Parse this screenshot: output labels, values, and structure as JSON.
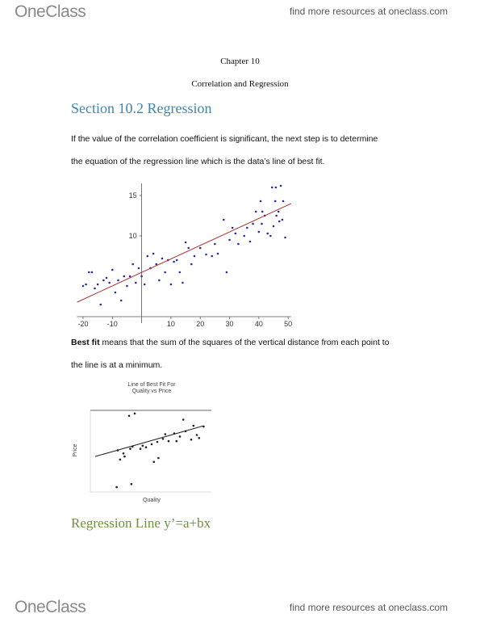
{
  "header": {
    "brand": "OneClass",
    "link": "find more resources at oneclass.com"
  },
  "chapter": "Chapter 10",
  "subtitle": "Correlation and Regression",
  "section": "Section 10.2 Regression",
  "paragraph1": [
    "If the value of the correlation coefficient is significant, the next step is to determine",
    "the equation of the regression line which is the data’s line of best fit."
  ],
  "chart_data": [
    {
      "type": "scatter",
      "x": [
        -20,
        -19,
        -18,
        -17,
        -16,
        -15,
        -14,
        -13,
        -12,
        -11,
        -10,
        -9,
        -8,
        -7,
        -6,
        -5,
        -4,
        -3,
        -2,
        -1,
        0,
        1,
        2,
        3,
        4,
        5,
        6,
        7,
        8,
        9,
        10,
        11,
        12,
        13,
        14,
        15,
        16,
        17,
        18,
        20,
        22,
        24,
        25,
        26,
        28,
        29,
        30,
        31,
        32,
        33,
        35,
        36,
        37,
        38,
        39,
        40,
        41,
        42,
        43,
        44,
        45,
        46,
        47,
        48,
        49,
        40.6,
        41.2,
        44.5,
        45.6,
        45.8,
        46.7,
        47.5,
        48.3
      ],
      "y": [
        3.8,
        4.0,
        5.5,
        5.5,
        3.5,
        4.0,
        1.5,
        4.5,
        4.8,
        4.2,
        5.8,
        3.0,
        4.5,
        2.0,
        5.0,
        3.8,
        5.0,
        6.5,
        4.2,
        6.0,
        5.0,
        4.0,
        7.5,
        6.0,
        7.8,
        6.5,
        4.5,
        7.2,
        5.5,
        7.0,
        4.0,
        6.8,
        7.0,
        5.5,
        4.2,
        9.2,
        8.5,
        6.5,
        7.5,
        8.5,
        7.7,
        7.5,
        9.0,
        7.8,
        12.0,
        5.5,
        9.5,
        11.0,
        10.3,
        9.0,
        10.0,
        11.0,
        9.3,
        11.5,
        13.0,
        10.5,
        11.5,
        12.5,
        10.3,
        10.0,
        11.2,
        12.5,
        11.8,
        12.0,
        9.8,
        14.3,
        13.0,
        16.0,
        14.3,
        16.0,
        13.0,
        16.2,
        14.3
      ],
      "color": "#2b2b9e",
      "fit": {
        "x": [
          -22,
          51
        ],
        "y": [
          1.8,
          14.0
        ],
        "color": "#b03030"
      },
      "xlim": [
        -22,
        51
      ],
      "ylim": [
        0,
        16.5
      ],
      "xticks": [
        -20,
        -10,
        10,
        20,
        30,
        40,
        50
      ],
      "yticks": [
        10,
        15
      ]
    },
    {
      "type": "scatter",
      "title": [
        "Line of Best Fit For",
        "Quality vs Price"
      ],
      "xlabel": "Quality",
      "ylabel": "Price",
      "x": [
        3,
        3.5,
        4,
        2,
        2.5,
        2.6,
        3.1,
        3.3,
        4.2,
        4.5,
        5,
        5.2,
        5.5,
        5.6,
        6,
        6.2,
        6.5,
        7,
        7.2,
        7.5,
        7.8,
        8,
        8.5,
        8.7,
        9,
        9.2,
        9.6,
        2.2,
        3.2,
        1.9
      ],
      "y": [
        9.5,
        9.8,
        5.2,
        5,
        4.6,
        4.2,
        5.2,
        5.5,
        5.6,
        5.4,
        5.8,
        3.5,
        6.1,
        4,
        6.5,
        7.1,
        6.2,
        7.2,
        6.2,
        6.8,
        9,
        7.5,
        6.4,
        8.2,
        7,
        6.6,
        8.1,
        3.8,
        0.6,
        0.2
      ],
      "color": "#222222",
      "fit": {
        "x": [
          0,
          9.6
        ],
        "y": [
          4.2,
          8.2
        ],
        "color": "#222222"
      },
      "xlim": [
        0,
        10
      ],
      "ylim": [
        0,
        10
      ]
    }
  ],
  "paragraph2": {
    "bold": "Best fit",
    "text": " means that the sum of the squares of the vertical distance from each point to",
    "line2": "the line is at a minimum."
  },
  "heading2": "Regression Line y’=a+bx",
  "footer": {
    "brand": "OneClass",
    "link": "find more resources at oneclass.com"
  }
}
